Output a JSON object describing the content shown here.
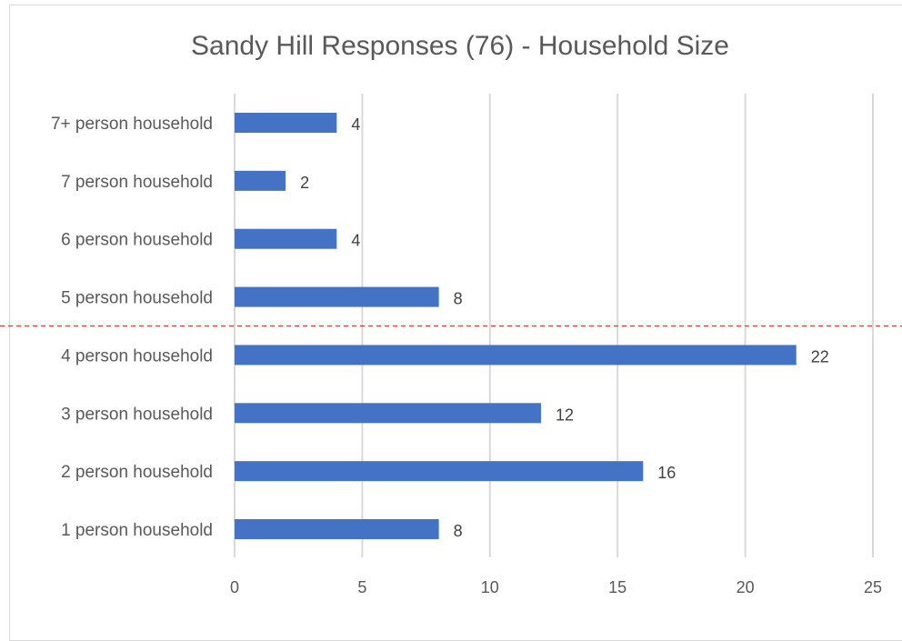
{
  "chart_data": {
    "type": "bar",
    "orientation": "horizontal",
    "title": "Sandy Hill Responses (76) - Household Size",
    "categories": [
      "7+ person household",
      "7 person household",
      "6 person household",
      "5 person household",
      "4 person household",
      "3 person household",
      "2 person household",
      "1 person household"
    ],
    "values": [
      4,
      2,
      4,
      8,
      22,
      12,
      16,
      8
    ],
    "x_ticks": [
      "0",
      "5",
      "10",
      "15",
      "20",
      "25"
    ],
    "xlim": [
      0,
      25
    ],
    "xlabel": "",
    "ylabel": "",
    "grid": true,
    "legend": "none",
    "reference_line": {
      "style": "dashed",
      "color": "#e03a3a",
      "position": "between 5 person household and 4 person household"
    },
    "colors": {
      "bar": "#4472c4",
      "grid": "#d9d9d9",
      "text": "#595959"
    }
  }
}
